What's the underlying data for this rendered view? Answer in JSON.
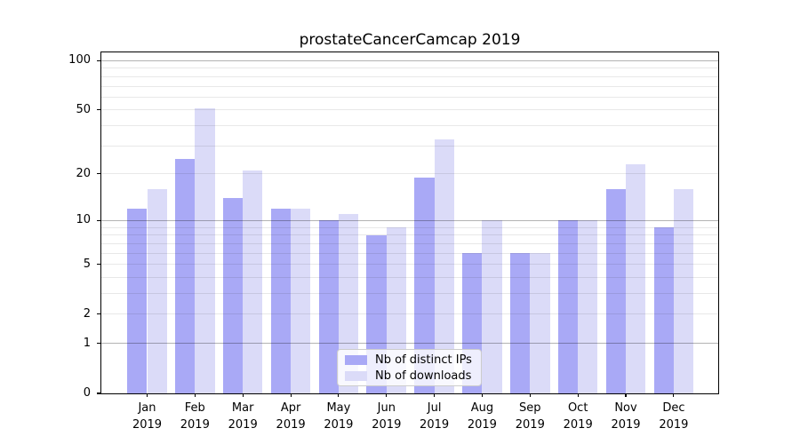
{
  "chart_data": {
    "type": "bar",
    "title": "prostateCancerCamcap 2019",
    "year_label": "2019",
    "categories": [
      "Jan",
      "Feb",
      "Mar",
      "Apr",
      "May",
      "Jun",
      "Jul",
      "Aug",
      "Sep",
      "Oct",
      "Nov",
      "Dec"
    ],
    "series": [
      {
        "name": "Nb of distinct IPs",
        "color": "#a9a9f6",
        "values": [
          12,
          25,
          14,
          12,
          10,
          8,
          19,
          6,
          6,
          10,
          16,
          9
        ]
      },
      {
        "name": "Nb of downloads",
        "color": "#dbdbf8",
        "values": [
          16,
          51,
          21,
          12,
          11,
          9,
          33,
          10,
          6,
          10,
          23,
          16
        ]
      }
    ],
    "xlabel": "",
    "ylabel": "",
    "y_scale": "log1p",
    "y_ticks": [
      0,
      1,
      2,
      5,
      10,
      20,
      50,
      100
    ],
    "ylim": [
      0,
      115
    ],
    "grid": {
      "major": [
        1,
        10,
        100
      ],
      "minor": [
        2,
        3,
        4,
        5,
        6,
        7,
        8,
        9,
        20,
        30,
        40,
        50,
        60,
        70,
        80,
        90
      ],
      "on": true,
      "drawn_over_bars": true
    },
    "legend": {
      "position": "lower center"
    },
    "colors": {
      "bar_distinct_ips": "#a9a9f6",
      "bar_downloads": "#dbdbf8",
      "grid_minor": "#e8e8e8",
      "grid_major": "#b3b3b3",
      "spine": "#000000",
      "background": "#ffffff"
    }
  }
}
